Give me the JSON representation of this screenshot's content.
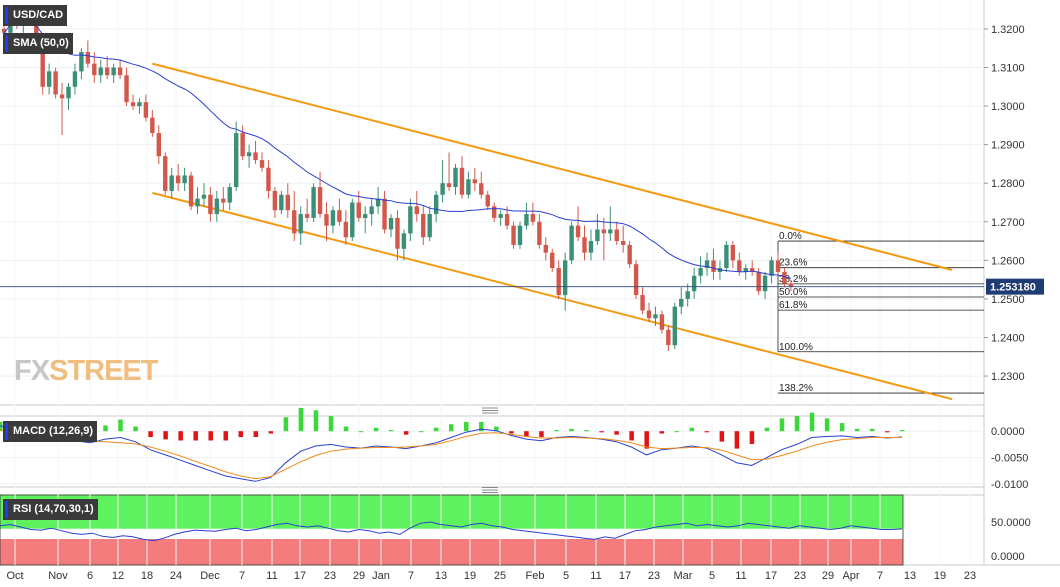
{
  "chart_data": {
    "type": "candlestick",
    "symbol": "USD/CAD",
    "sma_label": "SMA (50,0)",
    "last_price": "1.253180",
    "price_axis": {
      "min": 1.2225,
      "max": 1.3275,
      "ticks": [
        "1.3200",
        "1.3100",
        "1.3000",
        "1.2900",
        "1.2800",
        "1.2700",
        "1.2600",
        "1.2500",
        "1.2400",
        "1.2300"
      ]
    },
    "x_labels": [
      "Oct",
      "Nov",
      "6",
      "12",
      "18",
      "24",
      "Dec",
      "7",
      "11",
      "17",
      "23",
      "29",
      "Jan",
      "7",
      "13",
      "19",
      "25",
      "Feb",
      "5",
      "11",
      "17",
      "23",
      "Mar",
      "5",
      "11",
      "17",
      "23",
      "29",
      "Apr",
      "7",
      "13",
      "19",
      "23"
    ],
    "fib_levels": [
      {
        "label": "0.0%",
        "price": 1.265
      },
      {
        "label": "23.6%",
        "price": 1.2581
      },
      {
        "label": "38.2%",
        "price": 1.2539
      },
      {
        "label": "50.0%",
        "price": 1.2505
      },
      {
        "label": "61.8%",
        "price": 1.2471
      },
      {
        "label": "100.0%",
        "price": 1.2363
      },
      {
        "label": "138.2%",
        "price": 1.2256
      }
    ],
    "channel": {
      "upper": [
        {
          "date_index": 23,
          "price": 1.311
        },
        {
          "date_index": 147,
          "price": 1.2575
        }
      ],
      "lower": [
        {
          "date_index": 23,
          "price": 1.2775
        },
        {
          "date_index": 147,
          "price": 1.224
        }
      ]
    },
    "candles": [
      {
        "o": 1.32,
        "h": 1.3215,
        "l": 1.3175,
        "c": 1.319
      },
      {
        "o": 1.319,
        "h": 1.324,
        "l": 1.317,
        "c": 1.323
      },
      {
        "o": 1.323,
        "h": 1.326,
        "l": 1.32,
        "c": 1.321
      },
      {
        "o": 1.321,
        "h": 1.325,
        "l": 1.319,
        "c": 1.324
      },
      {
        "o": 1.324,
        "h": 1.326,
        "l": 1.321,
        "c": 1.322
      },
      {
        "o": 1.322,
        "h": 1.324,
        "l": 1.315,
        "c": 1.316
      },
      {
        "o": 1.316,
        "h": 1.318,
        "l": 1.303,
        "c": 1.305
      },
      {
        "o": 1.305,
        "h": 1.311,
        "l": 1.303,
        "c": 1.309
      },
      {
        "o": 1.309,
        "h": 1.31,
        "l": 1.302,
        "c": 1.303
      },
      {
        "o": 1.303,
        "h": 1.306,
        "l": 1.2925,
        "c": 1.302
      },
      {
        "o": 1.302,
        "h": 1.306,
        "l": 1.299,
        "c": 1.305
      },
      {
        "o": 1.305,
        "h": 1.311,
        "l": 1.303,
        "c": 1.309
      },
      {
        "o": 1.309,
        "h": 1.315,
        "l": 1.307,
        "c": 1.314
      },
      {
        "o": 1.314,
        "h": 1.317,
        "l": 1.31,
        "c": 1.311
      },
      {
        "o": 1.311,
        "h": 1.314,
        "l": 1.306,
        "c": 1.308
      },
      {
        "o": 1.308,
        "h": 1.312,
        "l": 1.306,
        "c": 1.31
      },
      {
        "o": 1.31,
        "h": 1.313,
        "l": 1.307,
        "c": 1.308
      },
      {
        "o": 1.308,
        "h": 1.311,
        "l": 1.306,
        "c": 1.31
      },
      {
        "o": 1.31,
        "h": 1.312,
        "l": 1.307,
        "c": 1.308
      },
      {
        "o": 1.308,
        "h": 1.31,
        "l": 1.3,
        "c": 1.301
      },
      {
        "o": 1.301,
        "h": 1.303,
        "l": 1.299,
        "c": 1.3
      },
      {
        "o": 1.3,
        "h": 1.302,
        "l": 1.298,
        "c": 1.301
      },
      {
        "o": 1.301,
        "h": 1.303,
        "l": 1.296,
        "c": 1.297
      },
      {
        "o": 1.297,
        "h": 1.299,
        "l": 1.292,
        "c": 1.293
      },
      {
        "o": 1.293,
        "h": 1.295,
        "l": 1.285,
        "c": 1.287
      },
      {
        "o": 1.287,
        "h": 1.288,
        "l": 1.277,
        "c": 1.278
      },
      {
        "o": 1.278,
        "h": 1.284,
        "l": 1.276,
        "c": 1.282
      },
      {
        "o": 1.282,
        "h": 1.285,
        "l": 1.278,
        "c": 1.28
      },
      {
        "o": 1.28,
        "h": 1.284,
        "l": 1.278,
        "c": 1.282
      },
      {
        "o": 1.282,
        "h": 1.283,
        "l": 1.273,
        "c": 1.274
      },
      {
        "o": 1.274,
        "h": 1.279,
        "l": 1.272,
        "c": 1.276
      },
      {
        "o": 1.276,
        "h": 1.28,
        "l": 1.274,
        "c": 1.277
      },
      {
        "o": 1.277,
        "h": 1.279,
        "l": 1.27,
        "c": 1.272
      },
      {
        "o": 1.272,
        "h": 1.278,
        "l": 1.27,
        "c": 1.276
      },
      {
        "o": 1.276,
        "h": 1.279,
        "l": 1.273,
        "c": 1.275
      },
      {
        "o": 1.275,
        "h": 1.28,
        "l": 1.273,
        "c": 1.279
      },
      {
        "o": 1.279,
        "h": 1.296,
        "l": 1.278,
        "c": 1.293
      },
      {
        "o": 1.293,
        "h": 1.295,
        "l": 1.286,
        "c": 1.287
      },
      {
        "o": 1.287,
        "h": 1.29,
        "l": 1.284,
        "c": 1.288
      },
      {
        "o": 1.288,
        "h": 1.291,
        "l": 1.285,
        "c": 1.286
      },
      {
        "o": 1.286,
        "h": 1.288,
        "l": 1.283,
        "c": 1.284
      },
      {
        "o": 1.284,
        "h": 1.286,
        "l": 1.276,
        "c": 1.278
      },
      {
        "o": 1.278,
        "h": 1.279,
        "l": 1.271,
        "c": 1.273
      },
      {
        "o": 1.273,
        "h": 1.278,
        "l": 1.272,
        "c": 1.277
      },
      {
        "o": 1.277,
        "h": 1.28,
        "l": 1.271,
        "c": 1.273
      },
      {
        "o": 1.273,
        "h": 1.278,
        "l": 1.265,
        "c": 1.267
      },
      {
        "o": 1.267,
        "h": 1.274,
        "l": 1.264,
        "c": 1.272
      },
      {
        "o": 1.272,
        "h": 1.276,
        "l": 1.27,
        "c": 1.271
      },
      {
        "o": 1.271,
        "h": 1.28,
        "l": 1.27,
        "c": 1.279
      },
      {
        "o": 1.279,
        "h": 1.283,
        "l": 1.271,
        "c": 1.272
      },
      {
        "o": 1.272,
        "h": 1.275,
        "l": 1.265,
        "c": 1.269
      },
      {
        "o": 1.269,
        "h": 1.274,
        "l": 1.267,
        "c": 1.273
      },
      {
        "o": 1.273,
        "h": 1.276,
        "l": 1.269,
        "c": 1.27
      },
      {
        "o": 1.27,
        "h": 1.273,
        "l": 1.264,
        "c": 1.266
      },
      {
        "o": 1.266,
        "h": 1.276,
        "l": 1.265,
        "c": 1.275
      },
      {
        "o": 1.275,
        "h": 1.278,
        "l": 1.27,
        "c": 1.271
      },
      {
        "o": 1.271,
        "h": 1.274,
        "l": 1.267,
        "c": 1.272
      },
      {
        "o": 1.272,
        "h": 1.276,
        "l": 1.269,
        "c": 1.274
      },
      {
        "o": 1.274,
        "h": 1.279,
        "l": 1.272,
        "c": 1.276
      },
      {
        "o": 1.276,
        "h": 1.278,
        "l": 1.267,
        "c": 1.268
      },
      {
        "o": 1.268,
        "h": 1.272,
        "l": 1.266,
        "c": 1.271
      },
      {
        "o": 1.271,
        "h": 1.273,
        "l": 1.26,
        "c": 1.263
      },
      {
        "o": 1.263,
        "h": 1.268,
        "l": 1.26,
        "c": 1.267
      },
      {
        "o": 1.267,
        "h": 1.276,
        "l": 1.265,
        "c": 1.274
      },
      {
        "o": 1.274,
        "h": 1.278,
        "l": 1.27,
        "c": 1.272
      },
      {
        "o": 1.272,
        "h": 1.274,
        "l": 1.264,
        "c": 1.266
      },
      {
        "o": 1.266,
        "h": 1.274,
        "l": 1.265,
        "c": 1.272
      },
      {
        "o": 1.272,
        "h": 1.278,
        "l": 1.27,
        "c": 1.277
      },
      {
        "o": 1.277,
        "h": 1.286,
        "l": 1.275,
        "c": 1.28
      },
      {
        "o": 1.28,
        "h": 1.288,
        "l": 1.278,
        "c": 1.279
      },
      {
        "o": 1.279,
        "h": 1.285,
        "l": 1.277,
        "c": 1.284
      },
      {
        "o": 1.284,
        "h": 1.287,
        "l": 1.276,
        "c": 1.277
      },
      {
        "o": 1.277,
        "h": 1.283,
        "l": 1.276,
        "c": 1.281
      },
      {
        "o": 1.281,
        "h": 1.284,
        "l": 1.278,
        "c": 1.28
      },
      {
        "o": 1.28,
        "h": 1.283,
        "l": 1.276,
        "c": 1.277
      },
      {
        "o": 1.277,
        "h": 1.278,
        "l": 1.273,
        "c": 1.274
      },
      {
        "o": 1.274,
        "h": 1.275,
        "l": 1.27,
        "c": 1.271
      },
      {
        "o": 1.271,
        "h": 1.273,
        "l": 1.269,
        "c": 1.272
      },
      {
        "o": 1.272,
        "h": 1.274,
        "l": 1.268,
        "c": 1.269
      },
      {
        "o": 1.269,
        "h": 1.27,
        "l": 1.263,
        "c": 1.264
      },
      {
        "o": 1.264,
        "h": 1.27,
        "l": 1.263,
        "c": 1.269
      },
      {
        "o": 1.269,
        "h": 1.275,
        "l": 1.268,
        "c": 1.272
      },
      {
        "o": 1.272,
        "h": 1.275,
        "l": 1.269,
        "c": 1.27
      },
      {
        "o": 1.27,
        "h": 1.272,
        "l": 1.263,
        "c": 1.264
      },
      {
        "o": 1.264,
        "h": 1.266,
        "l": 1.26,
        "c": 1.262
      },
      {
        "o": 1.262,
        "h": 1.263,
        "l": 1.257,
        "c": 1.258
      },
      {
        "o": 1.258,
        "h": 1.26,
        "l": 1.25,
        "c": 1.251
      },
      {
        "o": 1.251,
        "h": 1.262,
        "l": 1.247,
        "c": 1.26
      },
      {
        "o": 1.26,
        "h": 1.27,
        "l": 1.259,
        "c": 1.269
      },
      {
        "o": 1.269,
        "h": 1.274,
        "l": 1.265,
        "c": 1.266
      },
      {
        "o": 1.266,
        "h": 1.269,
        "l": 1.26,
        "c": 1.262
      },
      {
        "o": 1.262,
        "h": 1.268,
        "l": 1.26,
        "c": 1.265
      },
      {
        "o": 1.265,
        "h": 1.272,
        "l": 1.264,
        "c": 1.268
      },
      {
        "o": 1.268,
        "h": 1.271,
        "l": 1.26,
        "c": 1.267
      },
      {
        "o": 1.267,
        "h": 1.274,
        "l": 1.265,
        "c": 1.268
      },
      {
        "o": 1.268,
        "h": 1.27,
        "l": 1.264,
        "c": 1.265
      },
      {
        "o": 1.265,
        "h": 1.269,
        "l": 1.262,
        "c": 1.264
      },
      {
        "o": 1.264,
        "h": 1.265,
        "l": 1.258,
        "c": 1.259
      },
      {
        "o": 1.259,
        "h": 1.26,
        "l": 1.25,
        "c": 1.251
      },
      {
        "o": 1.251,
        "h": 1.253,
        "l": 1.246,
        "c": 1.247
      },
      {
        "o": 1.247,
        "h": 1.249,
        "l": 1.244,
        "c": 1.245
      },
      {
        "o": 1.245,
        "h": 1.248,
        "l": 1.243,
        "c": 1.246
      },
      {
        "o": 1.246,
        "h": 1.247,
        "l": 1.241,
        "c": 1.242
      },
      {
        "o": 1.242,
        "h": 1.243,
        "l": 1.2365,
        "c": 1.238
      },
      {
        "o": 1.238,
        "h": 1.249,
        "l": 1.237,
        "c": 1.248
      },
      {
        "o": 1.248,
        "h": 1.253,
        "l": 1.246,
        "c": 1.25
      },
      {
        "o": 1.25,
        "h": 1.254,
        "l": 1.248,
        "c": 1.252
      },
      {
        "o": 1.252,
        "h": 1.258,
        "l": 1.25,
        "c": 1.256
      },
      {
        "o": 1.256,
        "h": 1.261,
        "l": 1.254,
        "c": 1.258
      },
      {
        "o": 1.258,
        "h": 1.262,
        "l": 1.256,
        "c": 1.26
      },
      {
        "o": 1.26,
        "h": 1.263,
        "l": 1.255,
        "c": 1.257
      },
      {
        "o": 1.257,
        "h": 1.26,
        "l": 1.255,
        "c": 1.258
      },
      {
        "o": 1.258,
        "h": 1.265,
        "l": 1.257,
        "c": 1.264
      },
      {
        "o": 1.264,
        "h": 1.265,
        "l": 1.258,
        "c": 1.26
      },
      {
        "o": 1.26,
        "h": 1.262,
        "l": 1.256,
        "c": 1.257
      },
      {
        "o": 1.257,
        "h": 1.259,
        "l": 1.255,
        "c": 1.258
      },
      {
        "o": 1.258,
        "h": 1.26,
        "l": 1.256,
        "c": 1.257
      },
      {
        "o": 1.257,
        "h": 1.258,
        "l": 1.251,
        "c": 1.252
      },
      {
        "o": 1.252,
        "h": 1.257,
        "l": 1.25,
        "c": 1.256
      },
      {
        "o": 1.256,
        "h": 1.261,
        "l": 1.254,
        "c": 1.26
      },
      {
        "o": 1.26,
        "h": 1.262,
        "l": 1.256,
        "c": 1.257
      },
      {
        "o": 1.257,
        "h": 1.258,
        "l": 1.253,
        "c": 1.254
      },
      {
        "o": 1.254,
        "h": 1.255,
        "l": 1.252,
        "c": 1.2532
      }
    ],
    "macd": {
      "label": "MACD (12,26,9)",
      "ticks": [
        "0.0000",
        "-0.0050",
        "-0.0100"
      ],
      "macd_line": [
        0.001,
        0.0005,
        0.0002,
        -0.0001,
        -0.0008,
        -0.0018,
        -0.0022,
        -0.0015,
        -0.0012,
        -0.002,
        -0.0035,
        -0.0045,
        -0.0055,
        -0.0065,
        -0.0075,
        -0.0085,
        -0.009,
        -0.0095,
        -0.0088,
        -0.006,
        -0.0038,
        -0.0028,
        -0.0025,
        -0.003,
        -0.0032,
        -0.0028,
        -0.003,
        -0.0033,
        -0.0028,
        -0.0022,
        -0.0012,
        -0.0002,
        0.0004,
        0.0001,
        -0.0008,
        -0.0015,
        -0.0018,
        -0.0012,
        -0.001,
        -0.0012,
        -0.0015,
        -0.002,
        -0.003,
        -0.0045,
        -0.0035,
        -0.0032,
        -0.0028,
        -0.0032,
        -0.0045,
        -0.006,
        -0.0065,
        -0.005,
        -0.0035,
        -0.0025,
        -0.0012,
        -0.001,
        -0.0009,
        -0.0012,
        -0.001,
        -0.0013,
        -0.0011
      ],
      "signal_line": [
        0.0002,
        0.0001,
        -0.0002,
        -0.0006,
        -0.001,
        -0.0014,
        -0.0018,
        -0.002,
        -0.0022,
        -0.0024,
        -0.003,
        -0.0038,
        -0.0047,
        -0.0057,
        -0.0067,
        -0.0077,
        -0.0085,
        -0.009,
        -0.0086,
        -0.0072,
        -0.0058,
        -0.0046,
        -0.0038,
        -0.0034,
        -0.0032,
        -0.0031,
        -0.0031,
        -0.003,
        -0.0028,
        -0.0025,
        -0.0018,
        -0.001,
        -0.0004,
        -0.0003,
        -0.0006,
        -0.001,
        -0.0013,
        -0.0013,
        -0.0012,
        -0.0013,
        -0.0014,
        -0.0017,
        -0.0022,
        -0.003,
        -0.0033,
        -0.0032,
        -0.0031,
        -0.0031,
        -0.0036,
        -0.0045,
        -0.0054,
        -0.0053,
        -0.0046,
        -0.0038,
        -0.0028,
        -0.0021,
        -0.0016,
        -0.0014,
        -0.0012,
        -0.0012,
        -0.0012
      ]
    },
    "rsi": {
      "label": "RSI (14,70,30,1)",
      "ticks": [
        "50.0000",
        "0.0000"
      ],
      "overbought": 70,
      "oversold": 30,
      "values": [
        52,
        54,
        50,
        46,
        45,
        48,
        44,
        40,
        38,
        40,
        35,
        33,
        36,
        34,
        30,
        28,
        32,
        38,
        42,
        45,
        44,
        43,
        46,
        48,
        44,
        46,
        50,
        54,
        56,
        52,
        50,
        52,
        48,
        44,
        42,
        46,
        44,
        40,
        42,
        38,
        48,
        56,
        58,
        54,
        52,
        50,
        54,
        56,
        52,
        50,
        46,
        44,
        42,
        40,
        38,
        36,
        34,
        32,
        30,
        34,
        32,
        38,
        44,
        46,
        50,
        52,
        54,
        56,
        52,
        54,
        52,
        50,
        52,
        56,
        54,
        52,
        50,
        48,
        52,
        50,
        48,
        46,
        48,
        52,
        50,
        48,
        46,
        46,
        47
      ]
    }
  }
}
